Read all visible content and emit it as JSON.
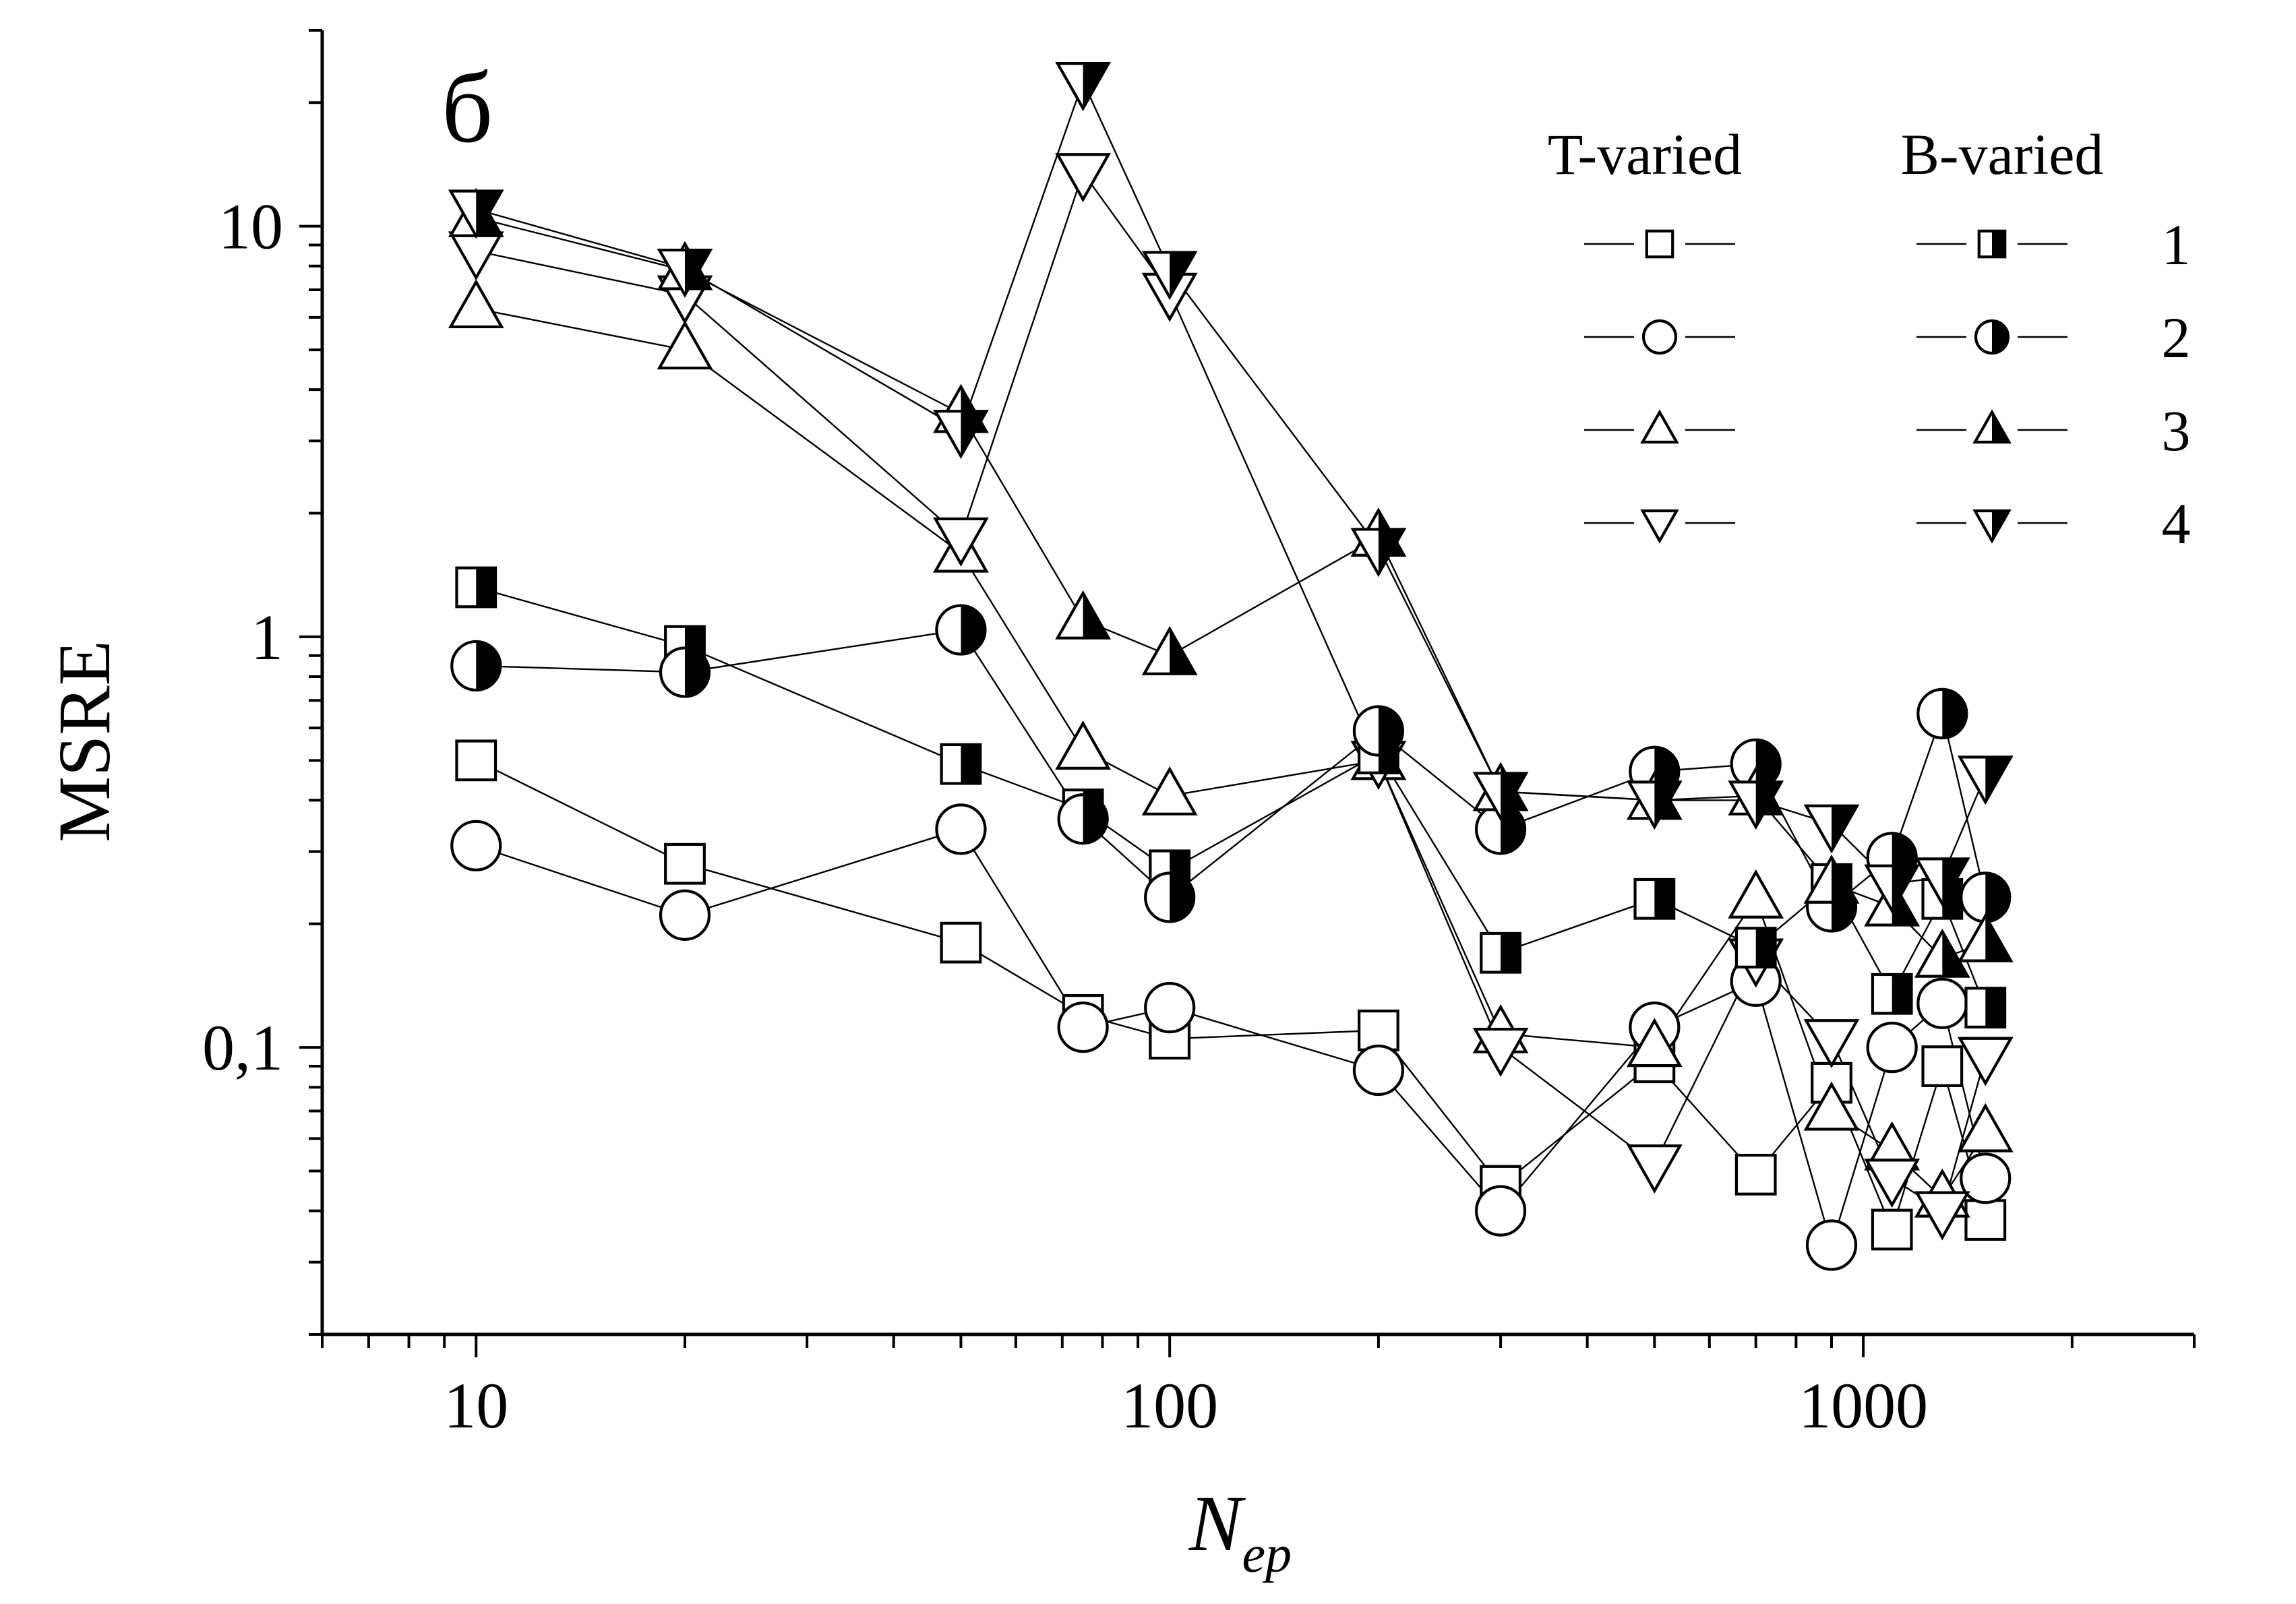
{
  "chart_data": {
    "type": "scatter",
    "panel_label": "б",
    "xlabel": "N",
    "xlabel_sub": "ep",
    "ylabel": "MSRE",
    "xscale": "log",
    "yscale": "log",
    "xlim": [
      6,
      3000
    ],
    "ylim": [
      0.02,
      30
    ],
    "x_tick_labels": [
      {
        "value": 10,
        "label": "10"
      },
      {
        "value": 100,
        "label": "100"
      },
      {
        "value": 1000,
        "label": "1000"
      }
    ],
    "y_tick_labels": [
      {
        "value": 0.1,
        "label": "0,1"
      },
      {
        "value": 1,
        "label": "1"
      },
      {
        "value": 10,
        "label": "10"
      }
    ],
    "grid": false,
    "legend": {
      "placement": "top-right",
      "headers": [
        "T-varied",
        "B-varied"
      ],
      "rows": [
        {
          "label": "1",
          "t_marker": "square",
          "b_marker": "square"
        },
        {
          "label": "2",
          "t_marker": "circle",
          "b_marker": "circle"
        },
        {
          "label": "3",
          "t_marker": "triangle-up",
          "b_marker": "triangle-up"
        },
        {
          "label": "4",
          "t_marker": "triangle-down",
          "b_marker": "triangle-down"
        }
      ]
    },
    "series": [
      {
        "marker": "square",
        "fill": "open",
        "x": [
          10,
          20,
          50,
          75,
          100,
          200,
          300,
          500,
          700,
          900,
          1100,
          1300,
          1500
        ],
        "y": [
          0.5,
          0.28,
          0.18,
          0.12,
          0.105,
          0.11,
          0.046,
          0.092,
          0.049,
          0.082,
          0.036,
          0.09,
          0.038
        ]
      },
      {
        "marker": "circle",
        "fill": "open",
        "x": [
          10,
          20,
          50,
          75,
          100,
          200,
          300,
          500,
          700,
          900,
          1100,
          1300,
          1500
        ],
        "y": [
          0.31,
          0.21,
          0.34,
          0.112,
          0.125,
          0.088,
          0.04,
          0.112,
          0.145,
          0.033,
          0.1,
          0.128,
          0.048
        ]
      },
      {
        "marker": "triangle-up",
        "fill": "open",
        "x": [
          10,
          20,
          50,
          75,
          100,
          200,
          300,
          500,
          700,
          900,
          1100,
          1300,
          1500
        ],
        "y": [
          6.3,
          5.0,
          1.6,
          0.53,
          0.41,
          0.5,
          0.108,
          0.1,
          0.23,
          0.07,
          0.056,
          0.043,
          0.062
        ]
      },
      {
        "marker": "triangle-down",
        "fill": "open",
        "x": [
          10,
          20,
          50,
          75,
          100,
          200,
          300,
          500,
          700,
          900,
          1100,
          1300,
          1500
        ],
        "y": [
          8.7,
          6.8,
          1.75,
          13.5,
          6.9,
          0.5,
          0.1,
          0.052,
          0.165,
          0.105,
          0.048,
          0.04,
          0.095
        ]
      },
      {
        "marker": "square",
        "fill": "half",
        "x": [
          10,
          20,
          50,
          75,
          100,
          200,
          300,
          500,
          700,
          900,
          1100,
          1300,
          1500
        ],
        "y": [
          1.32,
          0.95,
          0.49,
          0.38,
          0.27,
          0.52,
          0.17,
          0.23,
          0.175,
          0.25,
          0.135,
          0.23,
          0.125
        ]
      },
      {
        "marker": "circle",
        "fill": "half",
        "x": [
          10,
          20,
          50,
          75,
          100,
          200,
          300,
          500,
          700,
          900,
          1100,
          1300,
          1500
        ],
        "y": [
          0.85,
          0.82,
          1.04,
          0.36,
          0.232,
          0.59,
          0.34,
          0.47,
          0.49,
          0.22,
          0.29,
          0.65,
          0.232
        ]
      },
      {
        "marker": "triangle-up",
        "fill": "half",
        "x": [
          10,
          20,
          50,
          75,
          100,
          200,
          300,
          500,
          700,
          900,
          1100,
          1300,
          1500
        ],
        "y": [
          10.5,
          7.8,
          3.5,
          1.1,
          0.9,
          1.75,
          0.42,
          0.4,
          0.41,
          0.25,
          0.22,
          0.165,
          0.18
        ]
      },
      {
        "marker": "triangle-down",
        "fill": "half",
        "x": [
          10,
          20,
          50,
          75,
          100,
          200,
          300,
          500,
          700,
          900,
          1100,
          1300,
          1500
        ],
        "y": [
          11.0,
          7.9,
          3.2,
          22.5,
          7.8,
          1.65,
          0.42,
          0.4,
          0.4,
          0.35,
          0.25,
          0.26,
          0.46
        ]
      }
    ]
  }
}
